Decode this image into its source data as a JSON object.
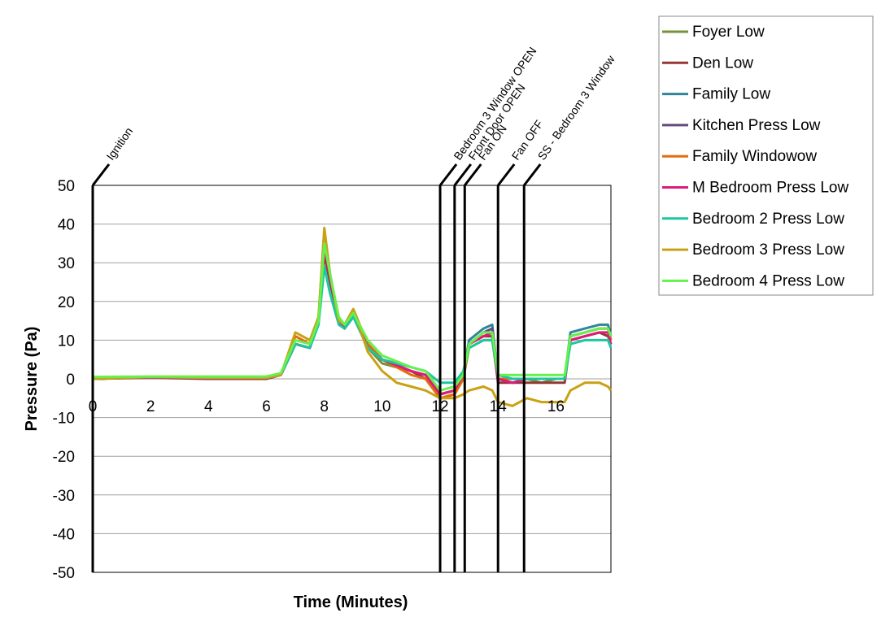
{
  "chart_data": {
    "type": "line",
    "xlabel": "Time (Minutes)",
    "ylabel": "Pressure (Pa)",
    "xlim": [
      0,
      17.9
    ],
    "ylim": [
      -50,
      50
    ],
    "x_ticks": [
      0,
      2,
      4,
      6,
      8,
      10,
      12,
      14,
      16
    ],
    "y_ticks": [
      50,
      40,
      30,
      20,
      10,
      0,
      -10,
      -20,
      -30,
      -40,
      -50
    ],
    "grid": "horizontal",
    "legend_position": "right",
    "events": [
      {
        "label": "Ignition",
        "x": 0
      },
      {
        "label": "Bedroom 3 Window OPEN",
        "x": 12.0
      },
      {
        "label": "Front Door OPEN",
        "x": 12.5
      },
      {
        "label": "Fan ON",
        "x": 12.85
      },
      {
        "label": "Fan OFF",
        "x": 14.0
      },
      {
        "label": "SS - Bedroom 3 Window",
        "x": 14.9
      }
    ],
    "series": [
      {
        "name": "Foyer Low",
        "color": "#76923C",
        "x": [
          0,
          2,
          4,
          6,
          6.5,
          7,
          7.5,
          7.8,
          8,
          8.2,
          8.5,
          8.7,
          9,
          9.5,
          10,
          11,
          11.5,
          12,
          12.5,
          12.8,
          13,
          13.5,
          13.8,
          14,
          14.5,
          15,
          15.5,
          16,
          16.3,
          16.5,
          17,
          17.5,
          17.8,
          17.9
        ],
        "y": [
          0,
          0.5,
          0.2,
          0.3,
          1,
          9,
          8,
          15,
          33,
          25,
          15,
          13,
          17,
          8,
          4,
          2,
          1,
          -4,
          -3,
          0,
          8,
          10,
          10,
          0,
          0,
          0,
          -1,
          0,
          0,
          10,
          11,
          12,
          11,
          9
        ]
      },
      {
        "name": "Den Low",
        "color": "#953735",
        "x": [
          0,
          2,
          4,
          6,
          6.5,
          7,
          7.5,
          7.8,
          8,
          8.2,
          8.5,
          8.7,
          9,
          9.5,
          10,
          11,
          11.5,
          12,
          12.5,
          12.8,
          13,
          13.5,
          13.8,
          14,
          14.5,
          15,
          15.5,
          16,
          16.3,
          16.5,
          17,
          17.5,
          17.8,
          17.9
        ],
        "y": [
          0,
          0.3,
          0,
          0,
          1,
          9,
          8,
          15,
          32,
          25,
          15,
          13,
          16,
          9,
          5,
          2,
          0,
          -5,
          -4,
          0,
          9,
          11,
          11,
          -1,
          -1,
          -1,
          -1,
          -1,
          -1,
          10,
          11,
          12,
          11,
          10
        ]
      },
      {
        "name": "Family Low",
        "color": "#31849B",
        "x": [
          0,
          2,
          4,
          6,
          6.5,
          7,
          7.5,
          7.8,
          8,
          8.2,
          8.5,
          8.7,
          9,
          9.5,
          10,
          11,
          11.5,
          12,
          12.5,
          12.8,
          13,
          13.5,
          13.8,
          14,
          14.5,
          15,
          15.5,
          16,
          16.3,
          16.5,
          17,
          17.5,
          17.8,
          17.9
        ],
        "y": [
          0,
          0.4,
          0.2,
          0.2,
          1,
          9,
          8,
          15,
          36,
          26,
          15,
          13,
          17,
          8,
          5,
          2,
          1,
          -4,
          -3,
          1,
          10,
          13,
          14,
          0,
          -1,
          0,
          0,
          0,
          0,
          12,
          13,
          14,
          14,
          11
        ]
      },
      {
        "name": "Kitchen Press Low",
        "color": "#604A7B",
        "x": [
          0,
          2,
          4,
          6,
          6.5,
          7,
          7.5,
          7.8,
          8,
          8.2,
          8.5,
          8.7,
          9,
          9.5,
          10,
          11,
          11.5,
          12,
          12.5,
          12.8,
          13,
          13.5,
          13.8,
          14,
          14.5,
          15,
          15.5,
          16,
          16.3,
          16.5,
          17,
          17.5,
          17.8,
          17.9
        ],
        "y": [
          0,
          0.4,
          0.1,
          0.2,
          1,
          9,
          8,
          15,
          35,
          26,
          15,
          13,
          17,
          8,
          5,
          2,
          1,
          -4,
          -3,
          1,
          9,
          12,
          13,
          0,
          -1,
          0,
          0,
          0,
          0,
          11,
          12,
          13,
          13,
          10
        ]
      },
      {
        "name": "Family Windowow",
        "color": "#E46C0A",
        "x": [
          0,
          2,
          4,
          6,
          6.5,
          7,
          7.5,
          7.8,
          8,
          8.2,
          8.5,
          8.7,
          9,
          9.5,
          10,
          11,
          11.5,
          12,
          12.5,
          12.8,
          13,
          13.5,
          13.8,
          14,
          14.5,
          15,
          15.5,
          16,
          16.3,
          16.5,
          17,
          17.5,
          17.8,
          17.9
        ],
        "y": [
          0,
          0.5,
          0.3,
          0.3,
          1,
          11,
          9,
          16,
          38,
          27,
          15,
          14,
          18,
          9,
          5,
          1,
          0,
          -5,
          -4,
          0,
          9,
          11,
          12,
          0,
          0,
          0,
          0,
          0,
          0,
          11,
          12,
          13,
          13,
          10
        ]
      },
      {
        "name": "M Bedroom Press Low",
        "color": "#E0197D",
        "x": [
          0,
          2,
          4,
          6,
          6.5,
          7,
          7.5,
          7.8,
          8,
          8.2,
          8.5,
          8.7,
          9,
          9.5,
          10,
          11,
          11.5,
          12,
          12.5,
          12.8,
          13,
          13.5,
          13.8,
          14,
          14.5,
          15,
          15.5,
          16,
          16.3,
          16.5,
          17,
          17.5,
          17.8,
          17.9
        ],
        "y": [
          0,
          0.4,
          0.2,
          0.2,
          1,
          9,
          8,
          15,
          34,
          26,
          15,
          13,
          17,
          8,
          5,
          2,
          1,
          -4,
          -3,
          1,
          9,
          11,
          12,
          0,
          -1,
          0,
          0,
          0,
          0,
          10,
          11,
          12,
          12,
          9
        ]
      },
      {
        "name": "Bedroom 2 Press Low",
        "color": "#1BC7A0",
        "x": [
          0,
          2,
          4,
          6,
          6.5,
          7,
          7.5,
          7.8,
          8,
          8.2,
          8.5,
          8.7,
          9,
          9.5,
          10,
          11,
          11.5,
          12,
          12.5,
          12.8,
          13,
          13.5,
          13.8,
          14,
          14.5,
          15,
          15.5,
          16,
          16.3,
          16.5,
          17,
          17.5,
          17.8,
          17.9
        ],
        "y": [
          0,
          0.5,
          0.3,
          0.3,
          1,
          9,
          8,
          14,
          29,
          22,
          14,
          13,
          16,
          8,
          5,
          3,
          2,
          -1,
          -1,
          2,
          8,
          10,
          10,
          1,
          0,
          0,
          0,
          0,
          0,
          9,
          10,
          10,
          10,
          8
        ]
      },
      {
        "name": "Bedroom 3 Press Low",
        "color": "#C9A113",
        "x": [
          0,
          2,
          4,
          6,
          6.5,
          7,
          7.5,
          7.8,
          8,
          8.2,
          8.5,
          8.7,
          9,
          9.5,
          10,
          10.5,
          11,
          11.5,
          12,
          12.5,
          12.8,
          13,
          13.5,
          13.8,
          14,
          14.5,
          15,
          15.5,
          16,
          16.3,
          16.5,
          17,
          17.5,
          17.8,
          17.9
        ],
        "y": [
          0,
          0.5,
          0.3,
          0.3,
          1,
          12,
          10,
          16,
          39,
          27,
          15,
          14,
          18,
          7,
          2,
          -1,
          -2,
          -3,
          -5,
          -5,
          -4,
          -3,
          -2,
          -3,
          -6,
          -7,
          -5,
          -6,
          -6,
          -6,
          -3,
          -1,
          -1,
          -2,
          -3
        ]
      },
      {
        "name": "Bedroom 4 Press Low",
        "color": "#66F14D",
        "x": [
          0,
          2,
          4,
          6,
          6.5,
          7,
          7.5,
          7.8,
          8,
          8.2,
          8.5,
          8.7,
          9,
          9.5,
          10,
          11,
          11.5,
          12,
          12.5,
          12.8,
          13,
          13.5,
          13.8,
          14,
          14.5,
          15,
          15.5,
          16,
          16.3,
          16.5,
          17,
          17.5,
          17.8,
          17.9
        ],
        "y": [
          0.5,
          0.6,
          0.6,
          0.6,
          1.5,
          10,
          9,
          15,
          35,
          27,
          16,
          14,
          17,
          10,
          6,
          3,
          2,
          -3,
          -2,
          1,
          9,
          12,
          12,
          1,
          1,
          1,
          1,
          1,
          1,
          11,
          12,
          13,
          13,
          11
        ]
      }
    ]
  }
}
